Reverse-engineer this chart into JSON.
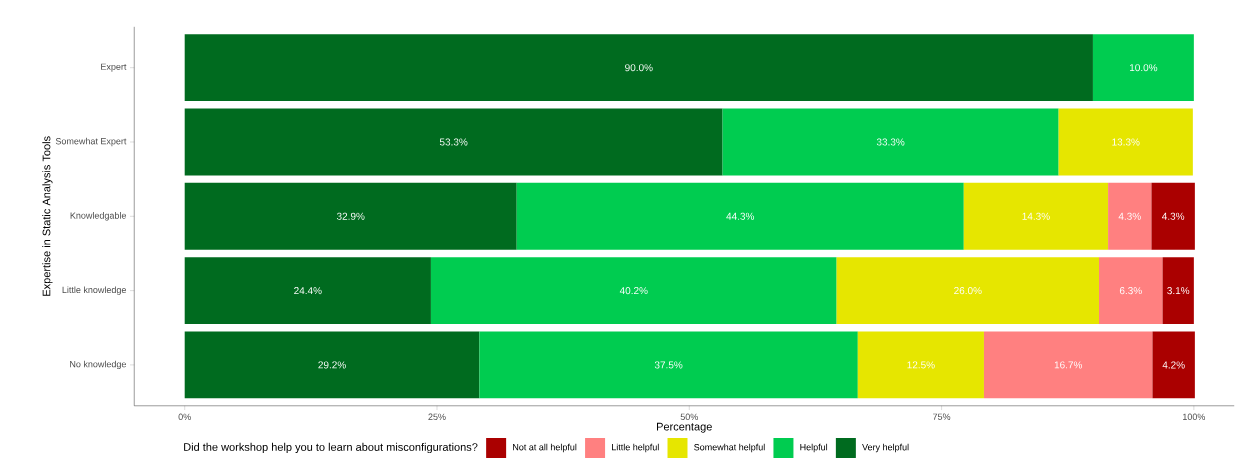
{
  "chart_data": {
    "type": "bar",
    "orientation": "horizontal",
    "stacked": true,
    "xlabel": "Percentage",
    "ylabel": "Expertise in Static Analysis Tools",
    "legend_title": "Did the workshop help you to learn about misconfigurations?",
    "legend": "bottom",
    "categories": [
      "Expert",
      "Somewhat Expert",
      "Knowledgable",
      "Little knowledge",
      "No knowledge"
    ],
    "xlim": [
      -5,
      104
    ],
    "xticks": [
      {
        "value": 0,
        "label": "0%"
      },
      {
        "value": 25,
        "label": "25%"
      },
      {
        "value": 50,
        "label": "50%"
      },
      {
        "value": 75,
        "label": "75%"
      },
      {
        "value": 100,
        "label": "100%"
      }
    ],
    "series": [
      {
        "name": "Very helpful",
        "color": "#006b1f",
        "values": [
          90.0,
          53.3,
          32.9,
          24.4,
          29.2
        ],
        "value_labels": [
          "90.0%",
          "53.3%",
          "32.9%",
          "24.4%",
          "29.2%"
        ]
      },
      {
        "name": "Helpful",
        "color": "#00cc50",
        "values": [
          10.0,
          33.3,
          44.3,
          40.2,
          37.5
        ],
        "value_labels": [
          "10.0%",
          "33.3%",
          "44.3%",
          "40.2%",
          "37.5%"
        ]
      },
      {
        "name": "Somewhat helpful",
        "color": "#e6e600",
        "values": [
          null,
          13.3,
          14.3,
          26.0,
          12.5
        ],
        "value_labels": [
          null,
          "13.3%",
          "14.3%",
          "26.0%",
          "12.5%"
        ]
      },
      {
        "name": "Little helpful",
        "color": "#ff8080",
        "values": [
          null,
          null,
          4.3,
          6.3,
          16.7
        ],
        "value_labels": [
          null,
          null,
          "4.3%",
          "6.3%",
          "16.7%"
        ]
      },
      {
        "name": "Not at all helpful",
        "color": "#aa0000",
        "values": [
          null,
          null,
          4.3,
          3.1,
          4.2
        ],
        "value_labels": [
          null,
          null,
          "4.3%",
          "3.1%",
          "4.2%"
        ]
      }
    ]
  }
}
